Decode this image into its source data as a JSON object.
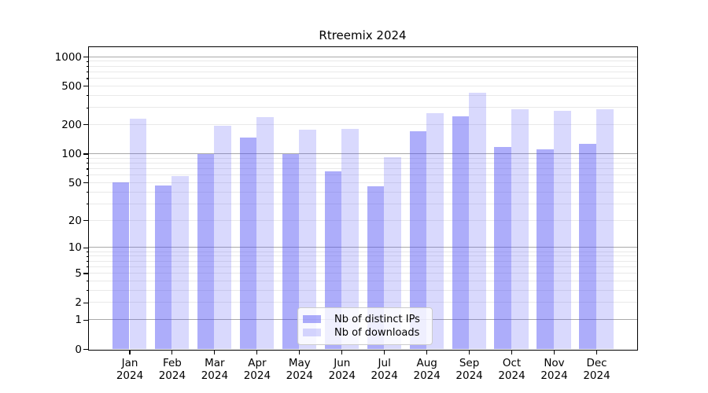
{
  "chart_data": {
    "type": "bar",
    "title": "Rtreemix 2024",
    "categories": [
      "Jan 2024",
      "Feb 2024",
      "Mar 2024",
      "Apr 2024",
      "May 2024",
      "Jun 2024",
      "Jul 2024",
      "Aug 2024",
      "Sep 2024",
      "Oct 2024",
      "Nov 2024",
      "Dec 2024"
    ],
    "series": [
      {
        "name": "Nb of distinct IPs",
        "values": [
          50,
          47,
          100,
          147,
          100,
          66,
          46,
          170,
          243,
          117,
          110,
          126
        ],
        "color_hex": "#aaaaf6",
        "fill": "rgba(80,80,245,0.47)"
      },
      {
        "name": "Nb of downloads",
        "values": [
          230,
          58,
          193,
          238,
          178,
          180,
          92,
          260,
          429,
          288,
          278,
          288
        ],
        "color_hex": "#d9d9f9",
        "fill": "rgba(80,80,245,0.22)"
      }
    ],
    "xlabel": "",
    "ylabel": "",
    "yscale": "log1p",
    "ylim": [
      0,
      1250
    ],
    "yticks": [
      0,
      1,
      2,
      5,
      10,
      20,
      50,
      100,
      200,
      500,
      1000
    ],
    "major_gridlines": [
      1,
      10,
      100,
      1000
    ],
    "minor_gridlines": [
      2,
      3,
      4,
      5,
      6,
      7,
      8,
      9,
      20,
      30,
      40,
      50,
      60,
      70,
      80,
      90,
      200,
      300,
      400,
      500,
      600,
      700,
      800,
      900
    ],
    "grid": {
      "horizontal": true,
      "vertical": false,
      "major_color": "#a9a9a9",
      "minor_color": "#e9e9e9"
    },
    "legend": {
      "position": "lower center",
      "entries": [
        "Nb of distinct IPs",
        "Nb of downloads"
      ]
    }
  },
  "colors": {
    "background": "#ffffff",
    "axis": "#000000",
    "text": "#000000"
  }
}
